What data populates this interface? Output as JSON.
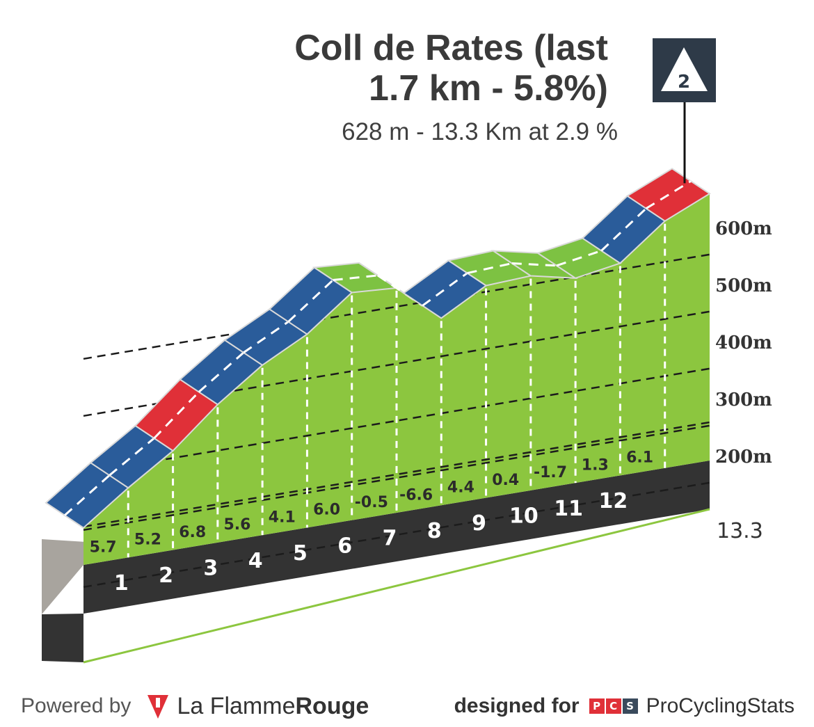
{
  "title_line1": "Coll de Rates (last",
  "title_line2": "1.7 km - 5.8%)",
  "subtitle": "628 m - 13.3 Km at 2.9 %",
  "category_badge": "2",
  "footer": {
    "powered_by": "Powered by",
    "brand_light": "La Flamme",
    "brand_bold": "Rouge",
    "designed_for": "designed for",
    "pcs_letters": [
      "P",
      "C",
      "S"
    ],
    "pcs_name": "ProCyclingStats"
  },
  "colors": {
    "easy": "#7dc242",
    "medium": "#2a5c9a",
    "hard": "#e03038",
    "ground": "#8cc63f",
    "base": "#333333",
    "wall": "#a8a49e"
  },
  "chart_data": {
    "type": "area",
    "title": "Coll de Rates (last 1.7 km - 5.8%)",
    "subtitle": "628 m - 13.3 Km at 2.9 %",
    "x_unit": "km",
    "total_distance": "13.3",
    "y_ticks": [
      "200m",
      "300m",
      "400m",
      "500m",
      "600m"
    ],
    "ylim": [
      200,
      600
    ],
    "km_labels": [
      "1",
      "2",
      "3",
      "4",
      "5",
      "6",
      "7",
      "8",
      "9",
      "10",
      "11",
      "12"
    ],
    "segments": [
      {
        "gradient": 5.7,
        "label": "5.7",
        "difficulty": "medium"
      },
      {
        "gradient": 5.2,
        "label": "5.2",
        "difficulty": "medium"
      },
      {
        "gradient": 6.8,
        "label": "6.8",
        "difficulty": "hard"
      },
      {
        "gradient": 5.6,
        "label": "5.6",
        "difficulty": "medium"
      },
      {
        "gradient": 4.1,
        "label": "4.1",
        "difficulty": "medium"
      },
      {
        "gradient": 6.0,
        "label": "6.0",
        "difficulty": "medium"
      },
      {
        "gradient": -0.5,
        "label": "-0.5",
        "difficulty": "easy"
      },
      {
        "gradient": -6.6,
        "label": "-6.6",
        "difficulty": "hard"
      },
      {
        "gradient": 4.4,
        "label": "4.4",
        "difficulty": "medium"
      },
      {
        "gradient": 0.4,
        "label": "0.4",
        "difficulty": "easy"
      },
      {
        "gradient": -1.7,
        "label": "-1.7",
        "difficulty": "easy"
      },
      {
        "gradient": 1.3,
        "label": "1.3",
        "difficulty": "easy"
      },
      {
        "gradient": 6.1,
        "label": "6.1",
        "difficulty": "medium"
      },
      {
        "gradient": 5.8,
        "label": "",
        "difficulty": "hard"
      }
    ],
    "summit_category": "2",
    "grid": true,
    "legend": "none"
  }
}
